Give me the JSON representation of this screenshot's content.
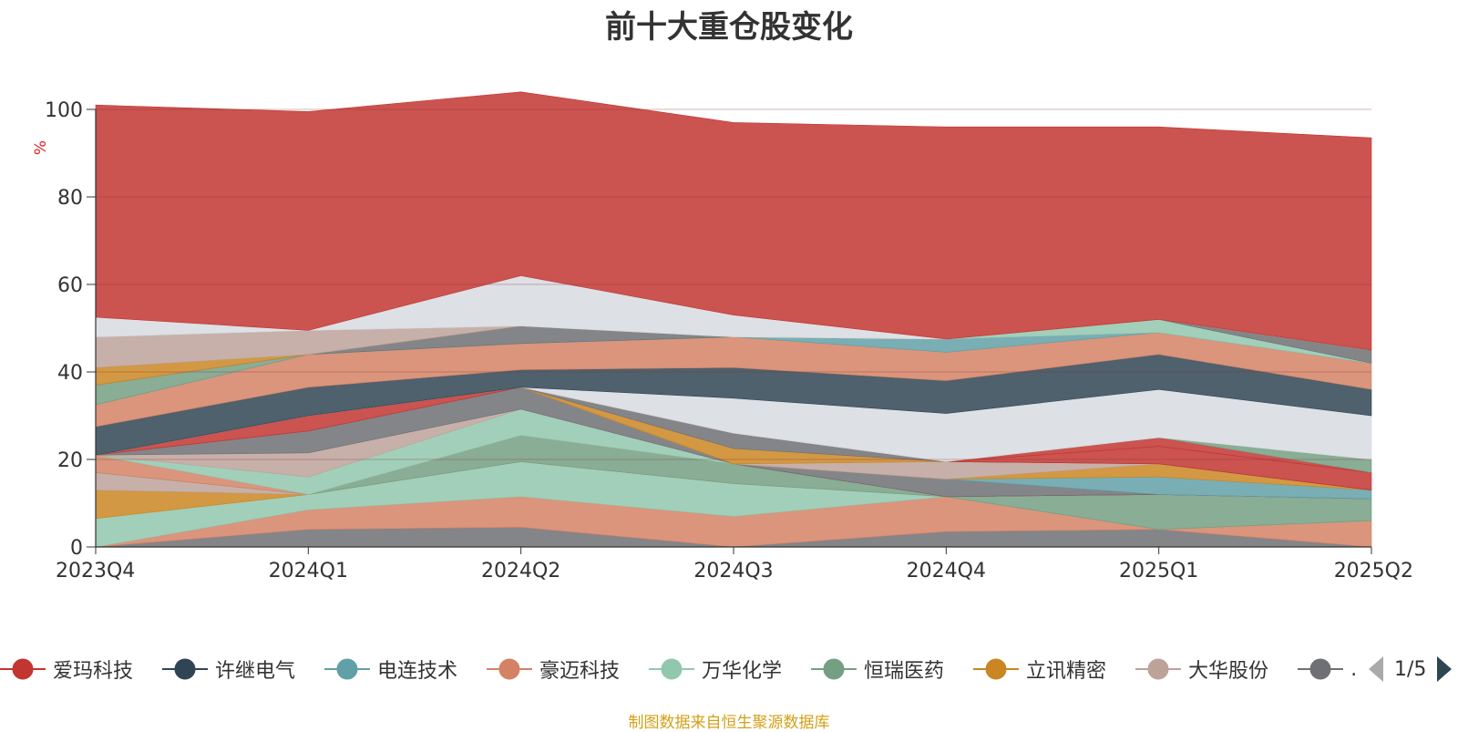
{
  "title": "前十大重仓股变化",
  "source_note": "制图数据来自恒生聚源数据库",
  "pager": {
    "text": "1/5"
  },
  "legend": [
    {
      "label": "爱玛科技",
      "color": "#c23531"
    },
    {
      "label": "许继电气",
      "color": "#2f4554"
    },
    {
      "label": "电连技术",
      "color": "#61a0a8"
    },
    {
      "label": "豪迈科技",
      "color": "#d48265"
    },
    {
      "label": "万华化学",
      "color": "#91c7ae"
    },
    {
      "label": "恒瑞医药",
      "color": "#749f83"
    },
    {
      "label": "立讯精密",
      "color": "#ca8622"
    },
    {
      "label": "大华股份",
      "color": "#bda29a"
    },
    {
      "label": "…",
      "color": "#6e7074"
    }
  ],
  "chart_data": {
    "type": "area",
    "stacked": true,
    "title": "前十大重仓股变化",
    "ylabel": "%",
    "ylim": [
      0,
      100
    ],
    "yticks": [
      0,
      20,
      40,
      60,
      80,
      100
    ],
    "grid": true,
    "categories": [
      "2023Q4",
      "2024Q1",
      "2024Q2",
      "2024Q3",
      "2024Q4",
      "2025Q1",
      "2025Q2"
    ],
    "series": [
      {
        "color": "#6e7074",
        "values": [
          0,
          4,
          4.5,
          0,
          3.5,
          4,
          0
        ]
      },
      {
        "color": "#d48265",
        "values": [
          0,
          4.5,
          7,
          7,
          8,
          0,
          6
        ]
      },
      {
        "color": "#91c7ae",
        "values": [
          6.5,
          3.5,
          8,
          7.5,
          0,
          0,
          0
        ]
      },
      {
        "color": "#ca8622",
        "values": [
          6.5,
          0,
          0,
          0,
          0,
          0,
          0
        ]
      },
      {
        "color": "#bda29a",
        "values": [
          4,
          0,
          0,
          0,
          0,
          0,
          0
        ]
      },
      {
        "color": "#749f83",
        "values": [
          0,
          0,
          6,
          4.5,
          0,
          8,
          5
        ]
      },
      {
        "color": "#d48265",
        "values": [
          4,
          0,
          0,
          0,
          0,
          0,
          0
        ]
      },
      {
        "color": "#91c7ae",
        "values": [
          0,
          4,
          6,
          0,
          0,
          0,
          0
        ]
      },
      {
        "color": "#bda29a",
        "values": [
          0,
          5.5,
          0,
          0,
          0,
          0,
          0
        ]
      },
      {
        "color": "#6e7074",
        "values": [
          0,
          5,
          5,
          0,
          0,
          0,
          0
        ]
      },
      {
        "color": "#c23531",
        "values": [
          0,
          3.5,
          0,
          0,
          0,
          0,
          0
        ]
      },
      {
        "color": "#6e7074",
        "values": [
          0,
          0,
          0,
          0,
          4,
          0,
          0
        ]
      },
      {
        "color": "#61a0a8",
        "values": [
          0,
          0,
          0,
          0,
          0,
          4,
          2
        ]
      },
      {
        "color": "#ca8622",
        "values": [
          0,
          0,
          0,
          0,
          0,
          3,
          0
        ]
      },
      {
        "color": "#bda29a",
        "values": [
          0,
          0,
          0,
          0,
          4,
          0,
          0
        ]
      },
      {
        "color": "#ca8622",
        "values": [
          0,
          0,
          0,
          3.5,
          0,
          0,
          0
        ]
      },
      {
        "color": "#6e7074",
        "values": [
          0,
          0,
          0,
          3.5,
          0,
          0,
          0
        ]
      },
      {
        "color": "#c23531",
        "values": [
          0,
          0,
          0,
          0,
          0,
          4,
          4
        ]
      },
      {
        "color": "#c23531",
        "values": [
          0,
          0,
          0,
          0,
          0,
          2,
          0
        ]
      },
      {
        "color": "#749f83",
        "values": [
          0,
          0,
          0,
          0,
          0,
          0,
          3
        ]
      },
      {
        "color": "#d7dbe0",
        "values": [
          0,
          0,
          0,
          8,
          11,
          11,
          10
        ]
      },
      {
        "color": "#2f4554",
        "values": [
          6.5,
          6.5,
          4,
          7,
          7.5,
          8,
          6
        ]
      },
      {
        "color": "#d48265",
        "values": [
          5,
          7.5,
          6,
          7,
          6.5,
          5,
          6
        ]
      },
      {
        "color": "#61a0a8",
        "values": [
          0,
          0,
          0,
          0,
          3,
          0,
          0
        ]
      },
      {
        "color": "#749f83",
        "values": [
          4.5,
          0,
          0,
          0,
          0,
          0,
          0
        ]
      },
      {
        "color": "#91c7ae",
        "values": [
          0,
          0,
          0,
          0,
          0,
          3,
          0
        ]
      },
      {
        "color": "#6e7074",
        "values": [
          0,
          0,
          4,
          0,
          0,
          0,
          3
        ]
      },
      {
        "color": "#ca8622",
        "values": [
          4,
          0,
          0,
          0,
          0,
          0,
          0
        ]
      },
      {
        "color": "#bda29a",
        "values": [
          7,
          5.5,
          0,
          0,
          0,
          0,
          0
        ]
      },
      {
        "color": "#d7dbe0",
        "values": [
          4.5,
          0,
          11.5,
          5,
          0,
          0,
          0
        ]
      },
      {
        "color": "#c23531",
        "values": [
          48.5,
          50,
          42,
          44,
          48.5,
          44,
          48.5
        ]
      }
    ]
  }
}
